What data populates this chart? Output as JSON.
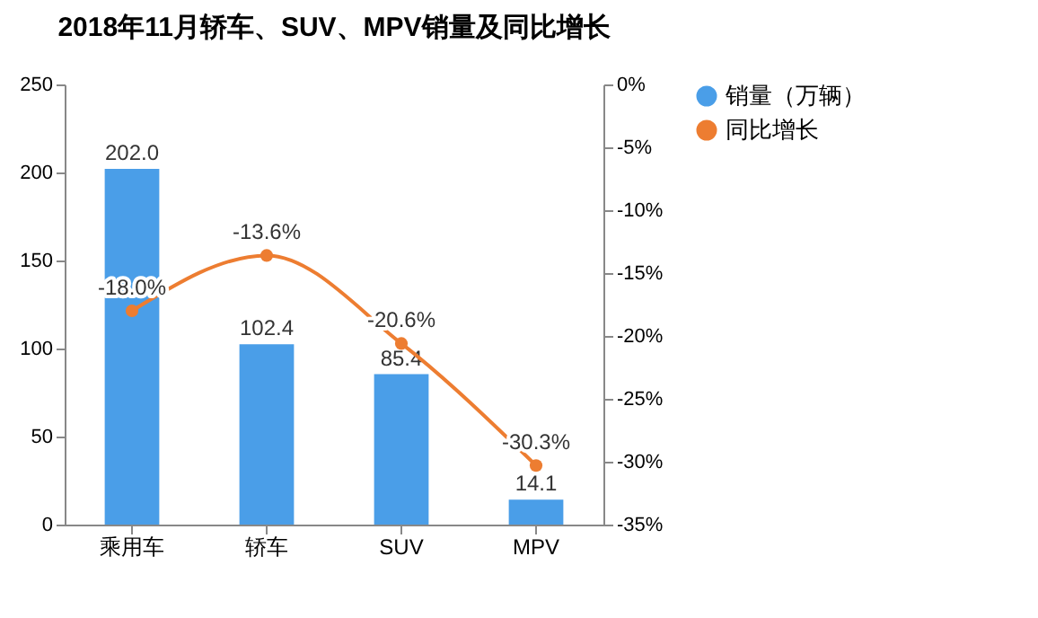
{
  "chart_data": {
    "type": "bar",
    "title": "2018年11月轿车、SUV、MPV销量及同比增长",
    "categories": [
      "乘用车",
      "轿车",
      "SUV",
      "MPV"
    ],
    "series": [
      {
        "name": "销量（万辆）",
        "color": "#4a9ee8",
        "values": [
          202.0,
          102.4,
          85.4,
          14.1
        ],
        "value_labels": [
          "202.0",
          "102.4",
          "85.4",
          "14.1"
        ]
      },
      {
        "name": "同比增长",
        "type": "line",
        "axis": "y2",
        "color": "#ed7d31",
        "values": [
          -18.0,
          -13.6,
          -20.6,
          -30.3
        ],
        "value_labels": [
          "-18.0%",
          "-13.6%",
          "-20.6%",
          "-30.3%"
        ]
      }
    ],
    "ylim": [
      0,
      250
    ],
    "yticks": [
      0,
      50,
      100,
      150,
      200,
      250
    ],
    "y2lim": [
      -35,
      0
    ],
    "y2ticks": [
      {
        "value": 0,
        "label": "0%"
      },
      {
        "value": -5,
        "label": "-5%"
      },
      {
        "value": -10,
        "label": "-10%"
      },
      {
        "value": -15,
        "label": "-15%"
      },
      {
        "value": -20,
        "label": "-20%"
      },
      {
        "value": -25,
        "label": "-25%"
      },
      {
        "value": -30,
        "label": "-30%"
      },
      {
        "value": -35,
        "label": "-35%"
      }
    ],
    "grid": false,
    "legend": "right",
    "marker": "circle",
    "line_style": "solid"
  }
}
